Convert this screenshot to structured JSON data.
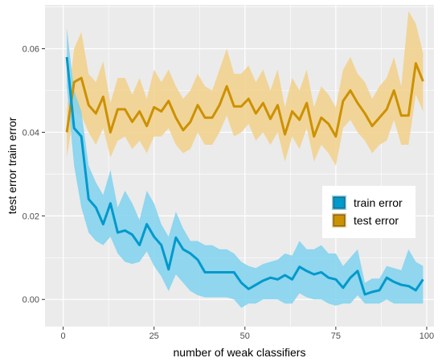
{
  "chart_data": {
    "type": "line",
    "title": "",
    "xlabel": "number of weak classifiers",
    "ylabel": "test error train error",
    "xlim": [
      -5,
      102
    ],
    "ylim": [
      -0.0065,
      0.0705
    ],
    "x_ticks": [
      0,
      25,
      50,
      75,
      100
    ],
    "x_tick_labels": [
      "0",
      "25",
      "50",
      "75",
      "100"
    ],
    "y_ticks": [
      0.0,
      0.02,
      0.04,
      0.06
    ],
    "y_tick_labels": [
      "0.00",
      "0.02",
      "0.04",
      "0.06"
    ],
    "grid": true,
    "legend_position": "right",
    "x": [
      1,
      3,
      5,
      7,
      9,
      11,
      13,
      15,
      17,
      19,
      21,
      23,
      25,
      27,
      29,
      31,
      33,
      35,
      37,
      39,
      41,
      43,
      45,
      47,
      49,
      51,
      53,
      55,
      57,
      59,
      61,
      63,
      65,
      67,
      69,
      71,
      73,
      75,
      77,
      79,
      81,
      83,
      85,
      87,
      89,
      91,
      93,
      95,
      97,
      99
    ],
    "series": [
      {
        "name": "train error",
        "color": "#0099cc",
        "band_color": "#7fd2ee",
        "values": [
          0.058,
          0.041,
          0.039,
          0.024,
          0.022,
          0.018,
          0.023,
          0.016,
          0.0165,
          0.0155,
          0.013,
          0.018,
          0.015,
          0.013,
          0.0072,
          0.0148,
          0.012,
          0.011,
          0.0095,
          0.0065,
          0.0065,
          0.0065,
          0.0065,
          0.0065,
          0.004,
          0.0025,
          0.0035,
          0.0045,
          0.0052,
          0.0048,
          0.0058,
          0.0048,
          0.0078,
          0.0068,
          0.006,
          0.0065,
          0.0052,
          0.0048,
          0.0028,
          0.0052,
          0.0068,
          0.0012,
          0.0018,
          0.0022,
          0.0052,
          0.0042,
          0.0035,
          0.0032,
          0.0022,
          0.0048
        ],
        "lower": [
          0.051,
          0.032,
          0.022,
          0.016,
          0.014,
          0.013,
          0.015,
          0.011,
          0.009,
          0.0085,
          0.009,
          0.0115,
          0.008,
          0.0055,
          0.002,
          0.006,
          0.004,
          0.002,
          0.001,
          0.0005,
          0.0005,
          0.0005,
          0.0005,
          0.0,
          -0.002,
          -0.001,
          -0.001,
          0.0,
          0.0,
          0.0,
          -0.001,
          -0.001,
          0.0015,
          0.0005,
          0.0,
          0.0,
          -0.001,
          -0.0015,
          -0.001,
          -0.001,
          0.001,
          -0.001,
          -0.001,
          -0.001,
          0.0,
          -0.001,
          -0.001,
          -0.001,
          -0.001,
          -0.001
        ],
        "upper": [
          0.065,
          0.05,
          0.045,
          0.032,
          0.028,
          0.025,
          0.031,
          0.022,
          0.026,
          0.023,
          0.019,
          0.026,
          0.023,
          0.018,
          0.015,
          0.021,
          0.017,
          0.014,
          0.014,
          0.013,
          0.013,
          0.012,
          0.012,
          0.011,
          0.009,
          0.008,
          0.0075,
          0.0085,
          0.009,
          0.0095,
          0.011,
          0.0105,
          0.014,
          0.012,
          0.012,
          0.013,
          0.011,
          0.011,
          0.008,
          0.01,
          0.012,
          0.004,
          0.005,
          0.005,
          0.008,
          0.0075,
          0.007,
          0.012,
          0.009,
          0.008
        ]
      },
      {
        "name": "test error",
        "color": "#cc9100",
        "band_color": "#f2d08a",
        "values": [
          0.04,
          0.052,
          0.053,
          0.0465,
          0.0445,
          0.0485,
          0.04,
          0.0455,
          0.0455,
          0.0425,
          0.045,
          0.0415,
          0.046,
          0.045,
          0.0475,
          0.0435,
          0.0405,
          0.0425,
          0.0465,
          0.0435,
          0.0435,
          0.0465,
          0.051,
          0.0462,
          0.0462,
          0.048,
          0.0445,
          0.047,
          0.0432,
          0.0465,
          0.0395,
          0.045,
          0.043,
          0.047,
          0.039,
          0.0435,
          0.042,
          0.039,
          0.0475,
          0.05,
          0.047,
          0.0445,
          0.0415,
          0.0435,
          0.0455,
          0.05,
          0.044,
          0.044,
          0.0565,
          0.0522
        ],
        "lower": [
          0.034,
          0.045,
          0.044,
          0.04,
          0.037,
          0.041,
          0.034,
          0.038,
          0.039,
          0.036,
          0.038,
          0.035,
          0.039,
          0.039,
          0.041,
          0.037,
          0.035,
          0.036,
          0.04,
          0.037,
          0.037,
          0.04,
          0.044,
          0.039,
          0.04,
          0.042,
          0.038,
          0.04,
          0.037,
          0.04,
          0.033,
          0.039,
          0.036,
          0.041,
          0.033,
          0.037,
          0.035,
          0.032,
          0.041,
          0.043,
          0.04,
          0.038,
          0.035,
          0.037,
          0.038,
          0.043,
          0.037,
          0.037,
          0.049,
          0.045
        ],
        "upper": [
          0.045,
          0.06,
          0.064,
          0.054,
          0.052,
          0.057,
          0.047,
          0.053,
          0.053,
          0.049,
          0.053,
          0.048,
          0.055,
          0.052,
          0.055,
          0.051,
          0.048,
          0.05,
          0.054,
          0.051,
          0.05,
          0.055,
          0.06,
          0.054,
          0.054,
          0.056,
          0.052,
          0.055,
          0.05,
          0.055,
          0.046,
          0.053,
          0.05,
          0.055,
          0.046,
          0.051,
          0.049,
          0.046,
          0.055,
          0.058,
          0.054,
          0.052,
          0.048,
          0.051,
          0.053,
          0.058,
          0.051,
          0.069,
          0.066,
          0.059
        ]
      }
    ]
  }
}
